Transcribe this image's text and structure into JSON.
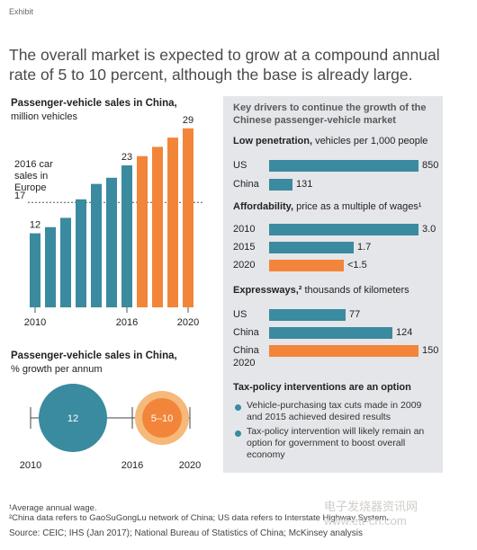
{
  "exhibit_label": "Exhibit",
  "headline": "The overall market is expected to grow at a compound annual rate of 5 to 10 percent, although the base is already large.",
  "colors": {
    "teal": "#3a8aa0",
    "orange": "#f2853a",
    "panel_bg": "#e4e6e9",
    "circle_ring": "#f5b97a"
  },
  "chart_data": [
    {
      "type": "bar",
      "title": "Passenger-vehicle sales in China,",
      "subtitle": "million vehicles",
      "categories": [
        "2010",
        "2011",
        "2012",
        "2013",
        "2014",
        "2015",
        "2016",
        "2017",
        "2018",
        "2019",
        "2020"
      ],
      "x_tick_labels": [
        "2010",
        "2016",
        "2020"
      ],
      "values": [
        12,
        13,
        14.5,
        17.5,
        20,
        21,
        23,
        24.5,
        26,
        27.5,
        29
      ],
      "data_labels": [
        "12",
        "",
        "",
        "",
        "",
        "",
        "23",
        "",
        "",
        "",
        "29"
      ],
      "bar_colors": [
        "teal",
        "teal",
        "teal",
        "teal",
        "teal",
        "teal",
        "teal",
        "orange",
        "orange",
        "orange",
        "orange"
      ],
      "reference_line": {
        "value": 17,
        "label_lines": [
          "2016 car",
          "sales in",
          "Europe"
        ],
        "value_label": "17"
      },
      "ylim": [
        0,
        30
      ],
      "grid": false
    },
    {
      "type": "other",
      "title": "Passenger-vehicle sales in China,",
      "subtitle": "% growth per annum",
      "periods": [
        {
          "label": "12",
          "start": "2010",
          "end": "2016",
          "value": 12
        },
        {
          "label": "5–10",
          "start": "2016",
          "end": "2020",
          "value_range": [
            5,
            10
          ]
        }
      ],
      "x_tick_labels": [
        "2010",
        "2016",
        "2020"
      ]
    },
    {
      "type": "bar",
      "orientation": "horizontal",
      "title": "Key drivers to continue the growth of the Chinese passenger-vehicle market",
      "sections": [
        {
          "heading": "Low penetration,",
          "subheading": "vehicles per 1,000 people",
          "rows": [
            {
              "label": "US",
              "value": 850,
              "value_label": "850",
              "color": "teal"
            },
            {
              "label": "China",
              "value": 131,
              "value_label": "131",
              "color": "teal"
            }
          ]
        },
        {
          "heading": "Affordability,",
          "subheading": "price as a multiple of wages¹",
          "rows": [
            {
              "label": "2010",
              "value": 3.0,
              "value_label": "3.0",
              "color": "teal"
            },
            {
              "label": "2015",
              "value": 1.7,
              "value_label": "1.7",
              "color": "teal"
            },
            {
              "label": "2020",
              "value": 1.5,
              "value_label": "<1.5",
              "color": "orange"
            }
          ]
        },
        {
          "heading": "Expressways,²",
          "subheading": "thousands of kilometers",
          "rows": [
            {
              "label": "US",
              "value": 77,
              "value_label": "77",
              "color": "teal"
            },
            {
              "label": "China",
              "value": 124,
              "value_label": "124",
              "color": "teal"
            },
            {
              "label": "China 2020",
              "label_lines": [
                "China",
                "2020"
              ],
              "value": 150,
              "value_label": "150",
              "color": "orange"
            }
          ]
        }
      ],
      "tax_section": {
        "heading": "Tax-policy interventions are an option",
        "bullets": [
          "Vehicle-purchasing tax cuts made in 2009 and 2015 achieved desired results",
          "Tax-policy intervention will likely remain an option for government to boost overall economy"
        ]
      }
    }
  ],
  "footnotes": [
    "¹Average annual wage.",
    "²China data refers to GaoSuGongLu network of China; US data refers to Interstate Highway System."
  ],
  "source": "Source: CEIC; IHS (Jan 2017); National Bureau of Statistics of China; McKinsey analysis",
  "watermark": {
    "line1": "电子发烧器资讯网",
    "line2": "www.ett-cn.com"
  }
}
